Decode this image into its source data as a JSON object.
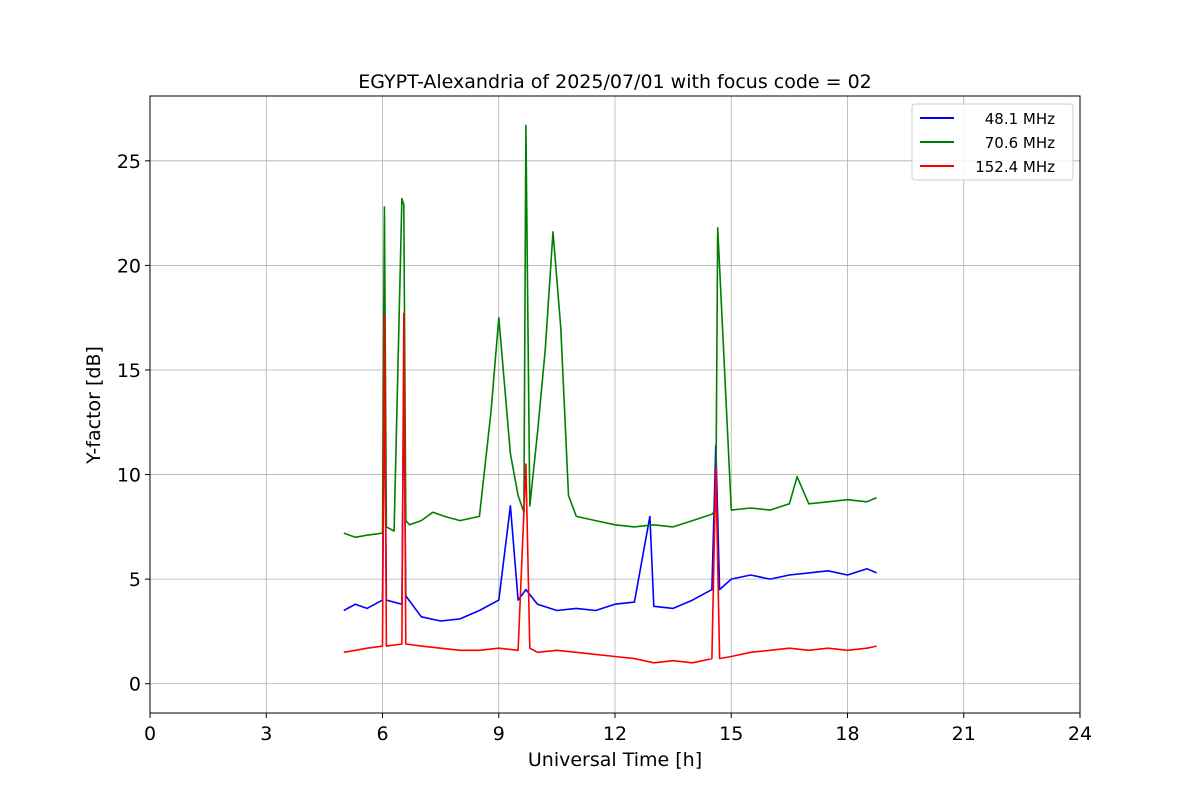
{
  "chart_data": {
    "type": "line",
    "title": "EGYPT-Alexandria of 2025/07/01 with focus code = 02",
    "xlabel": "Universal Time [h]",
    "ylabel": "Y-factor [dB]",
    "xlim": [
      0,
      24
    ],
    "ylim": [
      -1.4,
      28.1
    ],
    "xticks": [
      "0",
      "3",
      "6",
      "9",
      "12",
      "15",
      "18",
      "21",
      "24"
    ],
    "yticks": [
      "0",
      "5",
      "10",
      "15",
      "20",
      "25"
    ],
    "grid": true,
    "legend_position": "top-right",
    "series": [
      {
        "name": "48.1 MHz",
        "color": "#0000ff",
        "x": [
          5.0,
          5.3,
          5.6,
          6.0,
          6.05,
          6.1,
          6.5,
          6.55,
          6.6,
          7.0,
          7.5,
          8.0,
          8.5,
          9.0,
          9.3,
          9.5,
          9.7,
          10.0,
          10.5,
          11.0,
          11.5,
          12.0,
          12.5,
          12.9,
          13.0,
          13.5,
          14.0,
          14.5,
          14.6,
          14.7,
          15.0,
          15.5,
          16.0,
          16.5,
          17.0,
          17.5,
          18.0,
          18.5,
          18.75
        ],
        "y": [
          3.5,
          3.8,
          3.6,
          4.0,
          15.5,
          4.0,
          3.8,
          15.0,
          4.2,
          3.2,
          3.0,
          3.1,
          3.5,
          4.0,
          8.5,
          4.0,
          4.5,
          3.8,
          3.5,
          3.6,
          3.5,
          3.8,
          3.9,
          8.0,
          3.7,
          3.6,
          4.0,
          4.5,
          11.4,
          4.5,
          5.0,
          5.2,
          5.0,
          5.2,
          5.3,
          5.4,
          5.2,
          5.5,
          5.3
        ]
      },
      {
        "name": "70.6 MHz",
        "color": "#008000",
        "x": [
          5.0,
          5.3,
          5.6,
          6.0,
          6.05,
          6.1,
          6.3,
          6.5,
          6.55,
          6.6,
          6.7,
          7.0,
          7.3,
          7.6,
          8.0,
          8.5,
          8.8,
          9.0,
          9.3,
          9.5,
          9.65,
          9.7,
          9.8,
          10.0,
          10.2,
          10.4,
          10.6,
          10.8,
          11.0,
          11.5,
          12.0,
          12.5,
          13.0,
          13.5,
          14.0,
          14.5,
          14.6,
          14.65,
          15.0,
          15.5,
          16.0,
          16.5,
          16.7,
          17.0,
          17.5,
          18.0,
          18.5,
          18.75
        ],
        "y": [
          7.2,
          7.0,
          7.1,
          7.2,
          22.8,
          7.5,
          7.3,
          23.2,
          22.9,
          7.8,
          7.6,
          7.8,
          8.2,
          8.0,
          7.8,
          8.0,
          13.0,
          17.5,
          11.0,
          9.0,
          8.2,
          26.7,
          8.5,
          12.0,
          16.0,
          21.6,
          17.0,
          9.0,
          8.0,
          7.8,
          7.6,
          7.5,
          7.6,
          7.5,
          7.8,
          8.1,
          8.3,
          21.8,
          8.3,
          8.4,
          8.3,
          8.6,
          9.9,
          8.6,
          8.7,
          8.8,
          8.7,
          8.9
        ]
      },
      {
        "name": "152.4 MHz",
        "color": "#ff0000",
        "x": [
          5.0,
          5.3,
          5.6,
          6.0,
          6.05,
          6.1,
          6.5,
          6.55,
          6.6,
          7.0,
          7.5,
          8.0,
          8.5,
          9.0,
          9.5,
          9.7,
          9.8,
          10.0,
          10.5,
          11.0,
          11.5,
          12.0,
          12.5,
          13.0,
          13.5,
          14.0,
          14.5,
          14.6,
          14.7,
          15.0,
          15.5,
          16.0,
          16.5,
          17.0,
          17.5,
          18.0,
          18.5,
          18.75
        ],
        "y": [
          1.5,
          1.6,
          1.7,
          1.8,
          17.6,
          1.8,
          1.9,
          17.7,
          1.9,
          1.8,
          1.7,
          1.6,
          1.6,
          1.7,
          1.6,
          10.5,
          1.7,
          1.5,
          1.6,
          1.5,
          1.4,
          1.3,
          1.2,
          1.0,
          1.1,
          1.0,
          1.2,
          10.3,
          1.2,
          1.3,
          1.5,
          1.6,
          1.7,
          1.6,
          1.7,
          1.6,
          1.7,
          1.8
        ]
      }
    ]
  }
}
